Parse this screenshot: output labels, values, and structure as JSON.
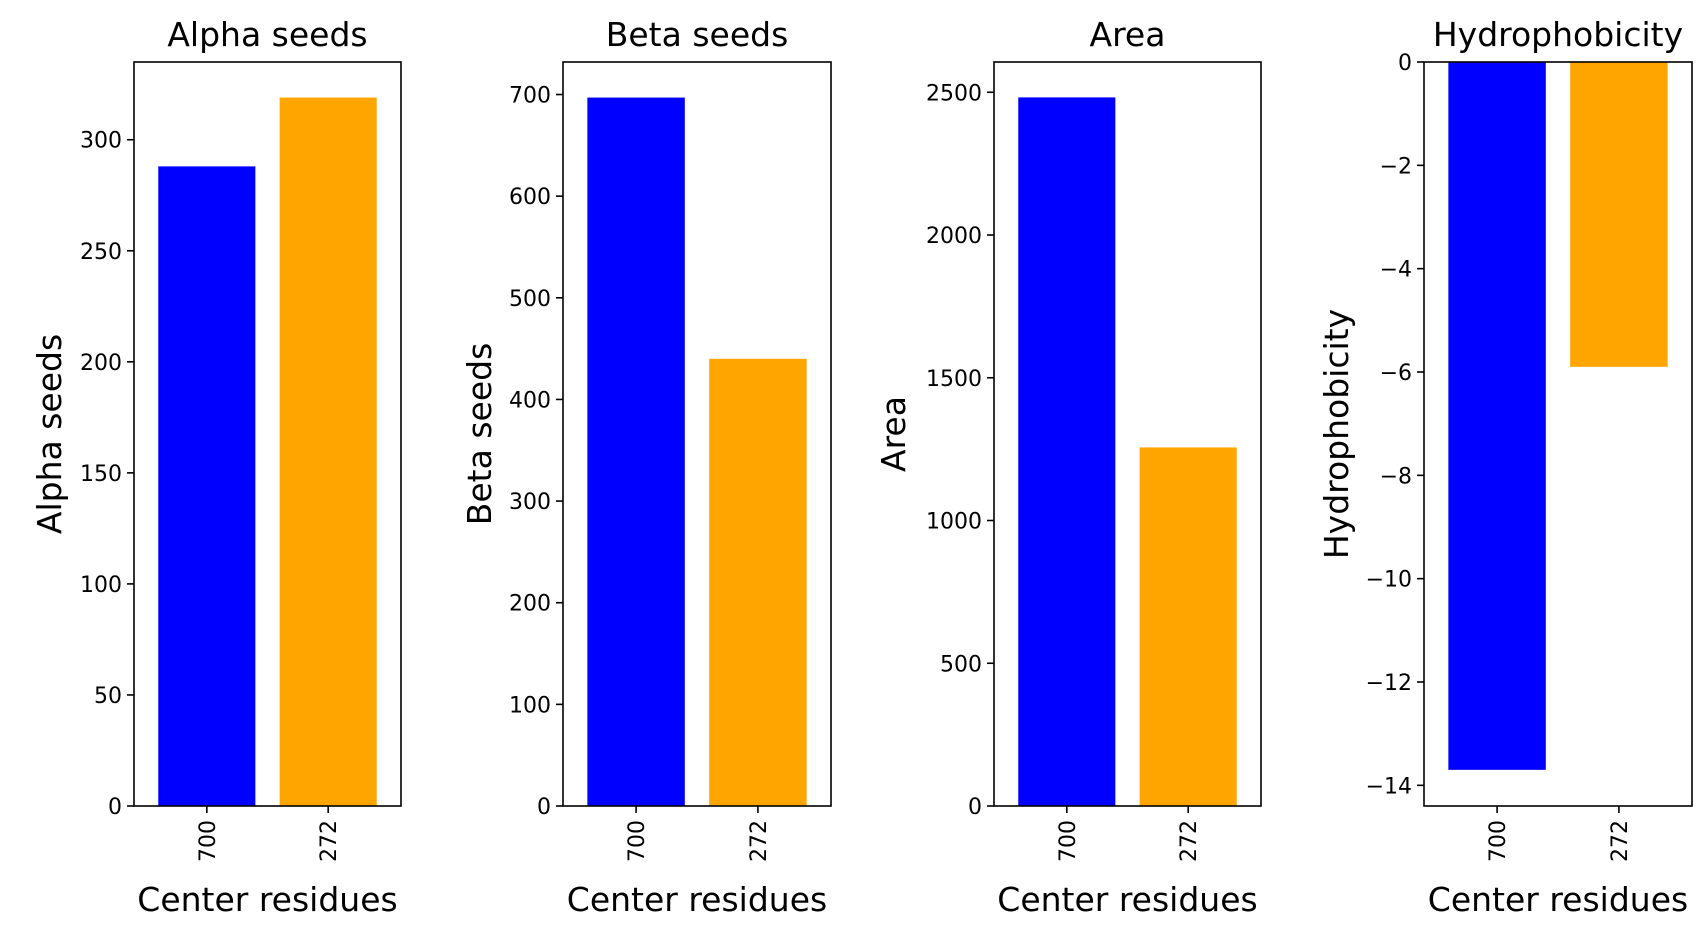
{
  "chart_data": [
    {
      "type": "bar",
      "title": "Alpha seeds",
      "xlabel": "Center residues",
      "ylabel": "Alpha seeds",
      "categories": [
        "700",
        "272"
      ],
      "values": [
        288,
        319
      ],
      "colors": [
        "#0000ff",
        "#ffa500"
      ],
      "ylim": [
        0,
        335
      ],
      "yticks": [
        0,
        50,
        100,
        150,
        200,
        250,
        300
      ],
      "ytick_labels": [
        "0",
        "50",
        "100",
        "150",
        "200",
        "250",
        "300"
      ]
    },
    {
      "type": "bar",
      "title": "Beta seeds",
      "xlabel": "Center residues",
      "ylabel": "Beta seeds",
      "categories": [
        "700",
        "272"
      ],
      "values": [
        697,
        440
      ],
      "colors": [
        "#0000ff",
        "#ffa500"
      ],
      "ylim": [
        0,
        732
      ],
      "yticks": [
        0,
        100,
        200,
        300,
        400,
        500,
        600,
        700
      ],
      "ytick_labels": [
        "0",
        "100",
        "200",
        "300",
        "400",
        "500",
        "600",
        "700"
      ]
    },
    {
      "type": "bar",
      "title": "Area",
      "xlabel": "Center residues",
      "ylabel": "Area",
      "categories": [
        "700",
        "272"
      ],
      "values": [
        2482,
        1256
      ],
      "colors": [
        "#0000ff",
        "#ffa500"
      ],
      "ylim": [
        0,
        2606
      ],
      "yticks": [
        0,
        500,
        1000,
        1500,
        2000,
        2500
      ],
      "ytick_labels": [
        "0",
        "500",
        "1000",
        "1500",
        "2000",
        "2500"
      ]
    },
    {
      "type": "bar",
      "title": "Hydrophobicity",
      "xlabel": "Center residues",
      "ylabel": "Hydrophobicity",
      "categories": [
        "700",
        "272"
      ],
      "values": [
        -13.7,
        -5.9
      ],
      "colors": [
        "#0000ff",
        "#ffa500"
      ],
      "ylim": [
        -14.4,
        0
      ],
      "yticks": [
        0,
        -2,
        -4,
        -6,
        -8,
        -10,
        -12,
        -14
      ],
      "ytick_labels": [
        "0",
        "−2",
        "−4",
        "−6",
        "−8",
        "−10",
        "−12",
        "−14"
      ]
    }
  ]
}
